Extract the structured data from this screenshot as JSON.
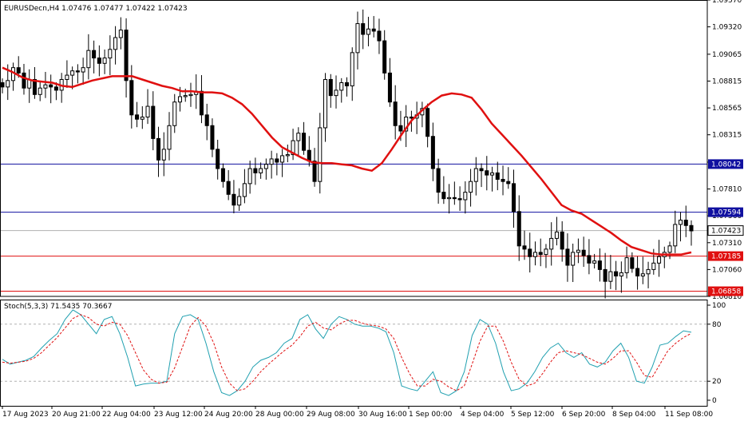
{
  "colors": {
    "background": "#ffffff",
    "frame": "#000000",
    "candle_bull_body": "#ffffff",
    "candle_bear_body": "#000000",
    "ma_line": "#e01010",
    "support_line": "#e01010",
    "resistance_line": "#1010a0",
    "current_price_line": "#b0b0b0",
    "stoch_main": "#20a0b0",
    "stoch_signal": "#e01010",
    "stoch_levels": "#b0b0b0"
  },
  "chart_data": [
    {
      "type": "candlestick",
      "title": "EURUSDecn,H4",
      "ohlc_header": [
        "1.07476",
        "1.07477",
        "1.07422",
        "1.07423"
      ],
      "ylim": [
        1.0681,
        1.0957
      ],
      "y_ticks": [
        "1.09570",
        "1.09320",
        "1.09065",
        "1.08815",
        "1.08565",
        "1.08315",
        "1.08060",
        "1.07810",
        "1.07560",
        "1.07310",
        "1.07060",
        "1.06810"
      ],
      "x_ticks": [
        "17 Aug 2023",
        "20 Aug 21:00",
        "22 Aug 04:00",
        "23 Aug 12:00",
        "24 Aug 20:00",
        "28 Aug 00:00",
        "29 Aug 08:00",
        "30 Aug 16:00",
        "1 Sep 00:00",
        "4 Sep 04:00",
        "5 Sep 12:00",
        "6 Sep 20:00",
        "8 Sep 04:00",
        "11 Sep 08:00"
      ],
      "current_price": {
        "value": 1.07423,
        "label": "1.07423"
      },
      "horizontal_lines": [
        {
          "value": 1.08042,
          "label": "1.08042",
          "role": "resistance"
        },
        {
          "value": 1.07594,
          "label": "1.07594",
          "role": "resistance"
        },
        {
          "value": 1.07185,
          "label": "1.07185",
          "role": "support"
        },
        {
          "value": 1.06858,
          "label": "1.06858",
          "role": "support"
        }
      ],
      "candles_close": [
        1.0876,
        1.0882,
        1.0894,
        1.0889,
        1.0875,
        1.0883,
        1.0869,
        1.0875,
        1.0878,
        1.0876,
        1.0873,
        1.0883,
        1.0887,
        1.0891,
        1.089,
        1.0894,
        1.091,
        1.0903,
        1.0898,
        1.0903,
        1.0911,
        1.0922,
        1.0929,
        1.0882,
        1.085,
        1.0846,
        1.0848,
        1.0858,
        1.0828,
        1.0808,
        1.0818,
        1.084,
        1.0862,
        1.0867,
        1.0868,
        1.0869,
        1.0872,
        1.085,
        1.084,
        1.0818,
        1.08,
        1.0788,
        1.0776,
        1.0766,
        1.0774,
        1.0786,
        1.08,
        1.0796,
        1.08,
        1.0804,
        1.0809,
        1.0806,
        1.0812,
        1.0813,
        1.0826,
        1.0833,
        1.0817,
        1.0807,
        1.0788,
        1.0838,
        1.0883,
        1.0868,
        1.0873,
        1.088,
        1.0877,
        1.0908,
        1.0935,
        1.0925,
        1.093,
        1.0928,
        1.0919,
        1.0889,
        1.0862,
        1.084,
        1.0835,
        1.0848,
        1.0847,
        1.085,
        1.0856,
        1.083,
        1.08,
        1.0778,
        1.0772,
        1.0773,
        1.0772,
        1.0771,
        1.0778,
        1.0788,
        1.08,
        1.0798,
        1.0794,
        1.0796,
        1.079,
        1.0788,
        1.0786,
        1.076,
        1.0728,
        1.0725,
        1.0718,
        1.0722,
        1.072,
        1.0725,
        1.0735,
        1.0741,
        1.0725,
        1.071,
        1.0722,
        1.0724,
        1.0719,
        1.0712,
        1.0714,
        1.0706,
        1.0695,
        1.0704,
        1.07,
        1.0703,
        1.0717,
        1.0707,
        1.07,
        1.0702,
        1.0706,
        1.0712,
        1.0718,
        1.0722,
        1.0728,
        1.0748,
        1.0752,
        1.0747,
        1.0742
      ],
      "moving_average": [
        1.0894,
        1.089,
        1.0885,
        1.0882,
        1.0881,
        1.088,
        1.0877,
        1.0876,
        1.0879,
        1.0882,
        1.0884,
        1.0886,
        1.0886,
        1.0886,
        1.0883,
        1.088,
        1.0877,
        1.0875,
        1.0872,
        1.0872,
        1.0871,
        1.0871,
        1.087,
        1.0866,
        1.086,
        1.0851,
        1.084,
        1.0829,
        1.082,
        1.0815,
        1.081,
        1.0806,
        1.0805,
        1.0805,
        1.0804,
        1.0803,
        1.08,
        1.0798,
        1.0805,
        1.0818,
        1.0832,
        1.0845,
        1.0854,
        1.0862,
        1.0868,
        1.087,
        1.0869,
        1.0866,
        1.0855,
        1.0842,
        1.0832,
        1.0822,
        1.0812,
        1.0801,
        1.079,
        1.0778,
        1.0766,
        1.0761,
        1.0758,
        1.0752,
        1.0746,
        1.074,
        1.0733,
        1.0727,
        1.0724,
        1.0721,
        1.072,
        1.072,
        1.072,
        1.0722
      ]
    },
    {
      "type": "line",
      "title": "Stoch(5,3,3) 71.5435 70.3667",
      "ylim": [
        0,
        100
      ],
      "y_ticks": [
        100,
        80,
        20,
        0
      ],
      "levels": [
        80,
        20
      ],
      "series": [
        {
          "role": "main",
          "values": [
            43,
            38,
            40,
            42,
            46,
            55,
            63,
            70,
            85,
            95,
            90,
            80,
            70,
            85,
            88,
            70,
            45,
            15,
            17,
            18,
            18,
            20,
            70,
            88,
            90,
            85,
            60,
            30,
            8,
            5,
            10,
            20,
            35,
            42,
            45,
            50,
            60,
            65,
            85,
            90,
            75,
            65,
            80,
            88,
            85,
            80,
            78,
            78,
            76,
            72,
            50,
            15,
            12,
            10,
            20,
            30,
            8,
            5,
            10,
            30,
            68,
            85,
            80,
            60,
            30,
            10,
            12,
            18,
            30,
            45,
            55,
            60,
            50,
            45,
            50,
            38,
            35,
            40,
            52,
            60,
            45,
            20,
            18,
            35,
            58,
            60,
            67,
            73,
            71.54
          ]
        },
        {
          "role": "signal",
          "values": [
            40,
            39,
            40,
            41,
            44,
            50,
            58,
            66,
            76,
            86,
            90,
            87,
            80,
            78,
            82,
            80,
            68,
            50,
            32,
            22,
            18,
            19,
            34,
            56,
            78,
            87,
            78,
            60,
            35,
            18,
            10,
            12,
            20,
            30,
            38,
            45,
            52,
            58,
            67,
            78,
            82,
            76,
            74,
            80,
            84,
            84,
            81,
            79,
            78,
            75,
            65,
            45,
            28,
            15,
            15,
            22,
            20,
            14,
            10,
            15,
            38,
            62,
            78,
            78,
            62,
            40,
            22,
            15,
            18,
            28,
            40,
            50,
            52,
            50,
            48,
            44,
            40,
            38,
            44,
            52,
            52,
            40,
            26,
            24,
            38,
            52,
            60,
            66,
            70.37
          ]
        }
      ]
    }
  ]
}
